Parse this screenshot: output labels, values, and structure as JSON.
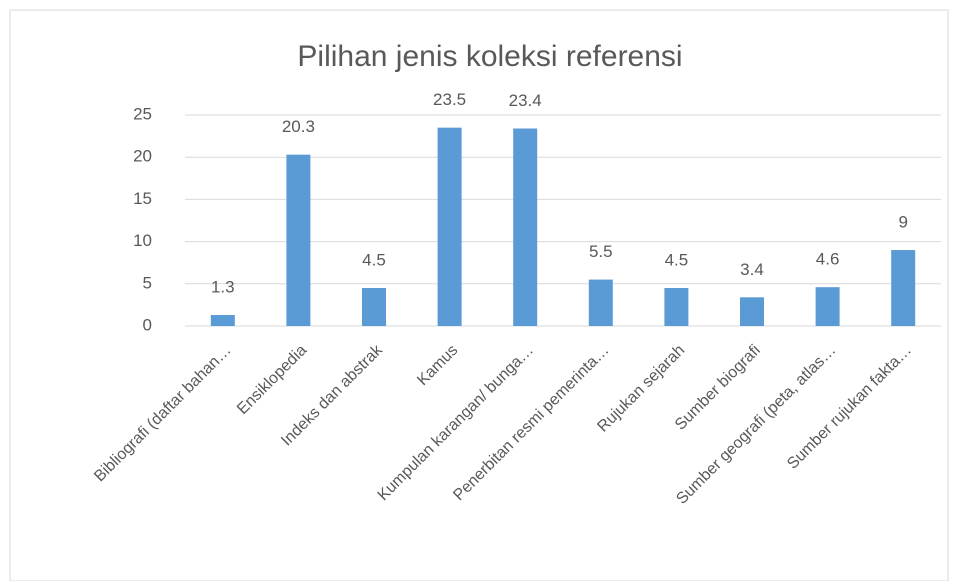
{
  "chart_data": {
    "type": "bar",
    "title": "Pilihan jenis koleksi referensi",
    "categories": [
      "Bibliografi (daftar bahan…",
      "Ensiklopedia",
      "Indeks dan abstrak",
      "Kamus",
      "Kumpulan karangan/ bunga…",
      "Penerbitan resmi pemerinta…",
      "Rujukan sejarah",
      "Sumber biografi",
      "Sumber geografi (peta, atlas…",
      "Sumber rujukan fakta…"
    ],
    "values": [
      1.3,
      20.3,
      4.5,
      23.5,
      23.4,
      5.5,
      4.5,
      3.4,
      4.6,
      9
    ],
    "color": "#5b9bd5",
    "ylim": [
      0,
      25
    ],
    "yticks": [
      0,
      5,
      10,
      15,
      20,
      25
    ],
    "grid": true
  }
}
